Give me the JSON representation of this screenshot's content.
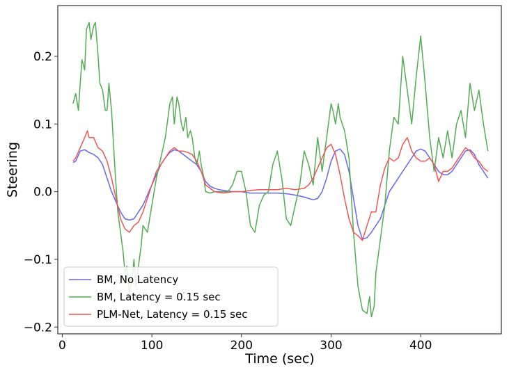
{
  "chart_data": {
    "type": "line",
    "title": "",
    "xlabel": "Time (sec)",
    "ylabel": "Steering",
    "xlim": [
      -5,
      490
    ],
    "ylim": [
      -0.21,
      0.275
    ],
    "xticks": [
      0,
      100,
      200,
      300,
      400
    ],
    "xtick_labels": [
      "0",
      "100",
      "200",
      "300",
      "400"
    ],
    "yticks": [
      -0.2,
      -0.1,
      0.0,
      0.1,
      0.2
    ],
    "ytick_labels": [
      "−0.2",
      "−0.1",
      "0.0",
      "0.1",
      "0.2"
    ],
    "grid": false,
    "legend_position": "lower-left",
    "series": [
      {
        "name": "BM, No Latency",
        "color": "#6666ee",
        "x": [
          12,
          15,
          20,
          25,
          30,
          35,
          40,
          45,
          50,
          55,
          60,
          65,
          70,
          75,
          80,
          85,
          90,
          95,
          100,
          105,
          110,
          115,
          120,
          125,
          130,
          135,
          140,
          145,
          150,
          155,
          160,
          165,
          170,
          175,
          180,
          190,
          200,
          210,
          220,
          230,
          240,
          250,
          260,
          270,
          280,
          285,
          290,
          295,
          300,
          305,
          310,
          315,
          320,
          325,
          330,
          335,
          340,
          345,
          350,
          355,
          360,
          365,
          370,
          375,
          380,
          385,
          390,
          395,
          400,
          405,
          410,
          415,
          420,
          425,
          430,
          435,
          440,
          445,
          450,
          455,
          460,
          465,
          470,
          475
        ],
        "y": [
          0.043,
          0.045,
          0.06,
          0.062,
          0.058,
          0.055,
          0.05,
          0.04,
          0.02,
          0.0,
          -0.015,
          -0.03,
          -0.04,
          -0.042,
          -0.04,
          -0.03,
          -0.02,
          -0.005,
          0.01,
          0.025,
          0.04,
          0.05,
          0.058,
          0.062,
          0.06,
          0.055,
          0.05,
          0.045,
          0.04,
          0.03,
          0.015,
          0.008,
          0.005,
          0.003,
          0.002,
          0.0,
          0.0,
          -0.002,
          -0.002,
          -0.002,
          -0.002,
          -0.003,
          -0.005,
          -0.008,
          -0.012,
          -0.01,
          0.0,
          0.02,
          0.045,
          0.06,
          0.063,
          0.055,
          0.03,
          -0.01,
          -0.05,
          -0.07,
          -0.068,
          -0.06,
          -0.05,
          -0.04,
          -0.02,
          0.0,
          0.01,
          0.02,
          0.03,
          0.04,
          0.05,
          0.06,
          0.063,
          0.06,
          0.05,
          0.04,
          0.03,
          0.025,
          0.025,
          0.03,
          0.04,
          0.05,
          0.06,
          0.062,
          0.055,
          0.04,
          0.03,
          0.02
        ]
      },
      {
        "name": "BM, Latency = 0.15 sec",
        "color": "#55aa55",
        "x": [
          12,
          15,
          18,
          20,
          22,
          25,
          27,
          30,
          32,
          35,
          37,
          40,
          42,
          45,
          48,
          50,
          52,
          55,
          58,
          60,
          62,
          65,
          68,
          70,
          72,
          75,
          78,
          80,
          82,
          85,
          88,
          90,
          95,
          100,
          105,
          110,
          115,
          120,
          123,
          125,
          128,
          130,
          133,
          135,
          138,
          140,
          143,
          145,
          148,
          150,
          153,
          155,
          158,
          160,
          165,
          170,
          175,
          180,
          185,
          190,
          195,
          200,
          205,
          210,
          215,
          220,
          225,
          230,
          235,
          240,
          245,
          250,
          255,
          260,
          265,
          270,
          275,
          280,
          285,
          290,
          295,
          300,
          302,
          305,
          308,
          310,
          315,
          320,
          325,
          330,
          335,
          340,
          343,
          345,
          348,
          350,
          355,
          360,
          365,
          370,
          375,
          380,
          385,
          390,
          395,
          400,
          405,
          410,
          415,
          420,
          425,
          430,
          435,
          440,
          445,
          450,
          455,
          460,
          465,
          470,
          475
        ],
        "y": [
          0.13,
          0.145,
          0.12,
          0.16,
          0.195,
          0.18,
          0.24,
          0.25,
          0.225,
          0.245,
          0.25,
          0.2,
          0.16,
          0.15,
          0.12,
          0.12,
          0.16,
          0.12,
          0.05,
          0.01,
          -0.03,
          -0.06,
          -0.09,
          -0.12,
          -0.11,
          -0.15,
          -0.13,
          -0.1,
          -0.14,
          -0.11,
          -0.08,
          -0.05,
          -0.06,
          -0.02,
          0.02,
          0.05,
          0.08,
          0.13,
          0.14,
          0.1,
          0.14,
          0.13,
          0.1,
          0.09,
          0.11,
          0.08,
          0.09,
          0.08,
          0.05,
          0.04,
          0.06,
          0.04,
          0.02,
          0.0,
          -0.002,
          0.0,
          0.0,
          0.0,
          0.0,
          0.01,
          0.03,
          0.03,
          0.0,
          -0.05,
          -0.06,
          -0.02,
          -0.005,
          0.0,
          0.04,
          0.06,
          0.02,
          -0.04,
          -0.05,
          -0.02,
          0.01,
          0.06,
          0.04,
          0.01,
          0.08,
          0.03,
          0.08,
          0.13,
          0.12,
          0.1,
          0.13,
          0.11,
          0.09,
          0.05,
          -0.06,
          -0.14,
          -0.175,
          -0.18,
          -0.155,
          -0.185,
          -0.17,
          -0.12,
          -0.07,
          -0.02,
          0.06,
          0.11,
          0.1,
          0.2,
          0.15,
          0.1,
          0.17,
          0.23,
          0.16,
          0.08,
          0.03,
          0.08,
          0.05,
          0.09,
          0.05,
          0.1,
          0.12,
          0.08,
          0.16,
          0.12,
          0.15,
          0.1,
          0.06
        ]
      },
      {
        "name": "PLM-Net, Latency = 0.15 sec",
        "color": "#ee5555",
        "x": [
          12,
          15,
          20,
          25,
          28,
          30,
          35,
          40,
          45,
          50,
          55,
          60,
          65,
          70,
          75,
          80,
          85,
          90,
          95,
          100,
          105,
          110,
          115,
          120,
          125,
          130,
          135,
          140,
          145,
          150,
          155,
          160,
          170,
          180,
          190,
          200,
          210,
          220,
          230,
          240,
          250,
          260,
          270,
          275,
          280,
          285,
          290,
          295,
          300,
          305,
          310,
          315,
          320,
          325,
          330,
          335,
          340,
          345,
          350,
          355,
          360,
          365,
          370,
          375,
          380,
          385,
          390,
          395,
          400,
          405,
          410,
          415,
          420,
          425,
          430,
          435,
          440,
          445,
          450,
          455,
          460,
          465,
          470,
          475
        ],
        "y": [
          0.045,
          0.05,
          0.065,
          0.08,
          0.09,
          0.08,
          0.08,
          0.065,
          0.06,
          0.045,
          0.02,
          -0.01,
          -0.04,
          -0.055,
          -0.06,
          -0.05,
          -0.045,
          -0.03,
          -0.01,
          0.01,
          0.03,
          0.04,
          0.05,
          0.06,
          0.065,
          0.06,
          0.06,
          0.058,
          0.055,
          0.045,
          0.03,
          0.01,
          0.0,
          -0.002,
          0.0,
          0.0,
          0.002,
          0.003,
          0.003,
          0.003,
          0.005,
          0.003,
          0.005,
          0.01,
          0.02,
          0.035,
          0.05,
          0.065,
          0.07,
          0.055,
          0.025,
          -0.01,
          -0.04,
          -0.06,
          -0.065,
          -0.072,
          -0.05,
          -0.03,
          -0.03,
          0.01,
          0.035,
          0.05,
          0.045,
          0.05,
          0.07,
          0.08,
          0.06,
          0.05,
          0.045,
          0.045,
          0.05,
          0.04,
          0.015,
          0.03,
          0.03,
          0.035,
          0.045,
          0.055,
          0.065,
          0.06,
          0.05,
          0.045,
          0.035,
          0.03
        ]
      }
    ]
  }
}
